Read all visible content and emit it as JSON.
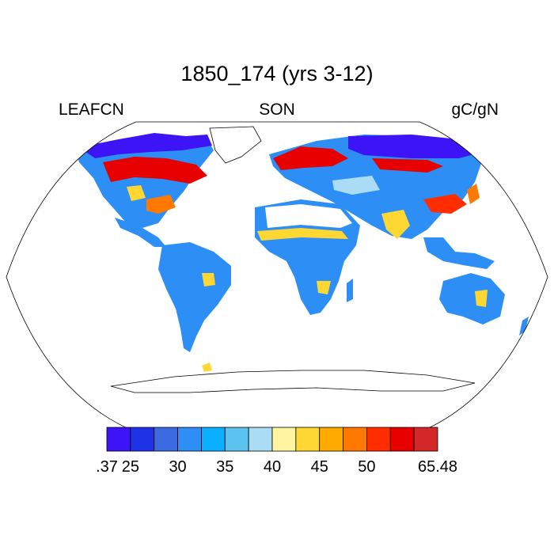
{
  "title": "1850_174 (yrs 3-12)",
  "left_label": "LEAFCN",
  "center_label": "SON",
  "right_label": "gC/gN",
  "colorbar": {
    "colors": [
      "#3c14f5",
      "#1e32e6",
      "#3c6be1",
      "#2d8ff5",
      "#0aafff",
      "#5ac3f0",
      "#aadcf5",
      "#fff5a0",
      "#ffd732",
      "#ffaa00",
      "#ff7800",
      "#ff2d00",
      "#e60000",
      "#d22828"
    ],
    "tick_labels": [
      ".37",
      "25",
      "30",
      "35",
      "40",
      "45",
      "50",
      "65.48"
    ]
  },
  "map_regions": [
    {
      "name": "canada-arctic",
      "color": "#3c14f5"
    },
    {
      "name": "canada-boreal",
      "color": "#e60000"
    },
    {
      "name": "usa-east",
      "color": "#2d8ff5"
    },
    {
      "name": "usa-gulf",
      "color": "#ff7800"
    },
    {
      "name": "south-america",
      "color": "#2d8ff5"
    },
    {
      "name": "sahel-band",
      "color": "#ffd732"
    },
    {
      "name": "africa-south",
      "color": "#2d8ff5"
    },
    {
      "name": "europe-boreal",
      "color": "#e60000"
    },
    {
      "name": "siberia",
      "color": "#3c14f5"
    },
    {
      "name": "asia-central",
      "color": "#2d8ff5"
    },
    {
      "name": "india",
      "color": "#ffd732"
    },
    {
      "name": "east-asia",
      "color": "#ff2d00"
    },
    {
      "name": "australia",
      "color": "#2d8ff5"
    }
  ]
}
